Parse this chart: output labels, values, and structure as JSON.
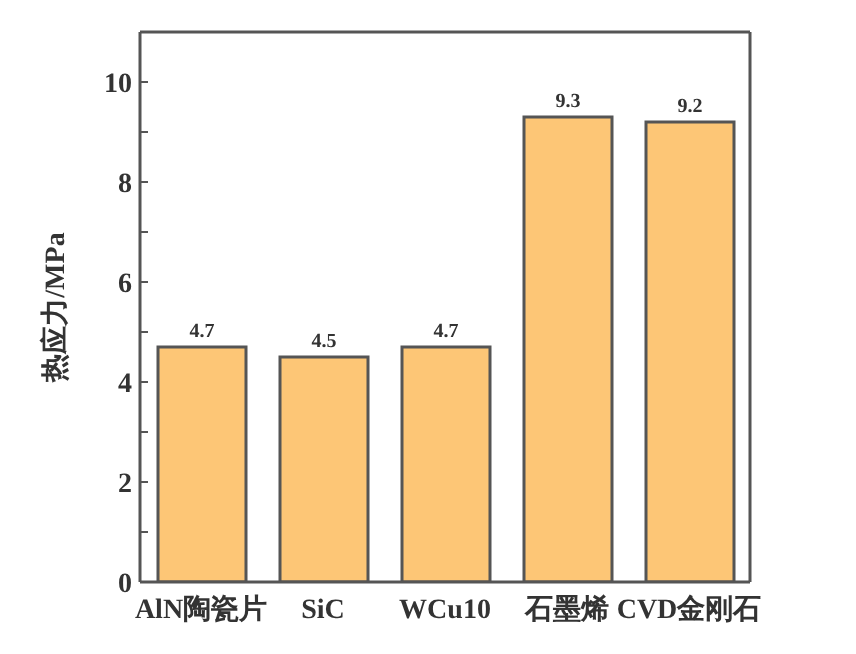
{
  "chart_data": {
    "type": "bar",
    "ylabel": "热应力/MPa",
    "categories": [
      "AlN陶瓷片",
      "SiC",
      "WCu10",
      "石墨烯",
      "CVD金刚石"
    ],
    "values": [
      4.7,
      4.5,
      4.7,
      9.3,
      9.2
    ],
    "color": "#fdc676",
    "ylim": [
      0,
      11
    ],
    "yticks": [
      0,
      {
        "value": 1,
        "label": null
      },
      2,
      {
        "value": 3,
        "label": null
      },
      4,
      {
        "value": 5,
        "label": null
      },
      6,
      {
        "value": 7,
        "label": null
      },
      8,
      {
        "value": 9,
        "label": null
      },
      10
    ],
    "data_labels": true,
    "grid": false,
    "legend": false
  }
}
